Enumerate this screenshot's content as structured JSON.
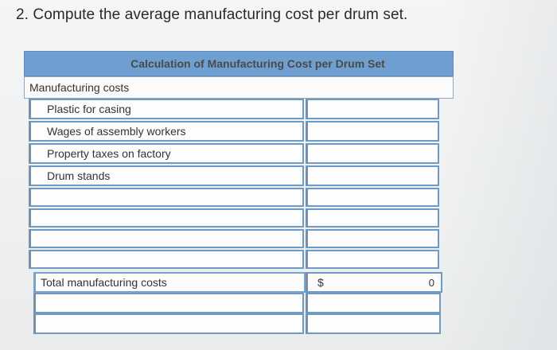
{
  "question": "2. Compute the average manufacturing cost per drum set.",
  "table": {
    "title": "Calculation of Manufacturing Cost per Drum Set",
    "section_label": "Manufacturing costs",
    "items": [
      "Plastic for casing",
      "Wages of assembly workers",
      "Property taxes on factory",
      "Drum stands"
    ],
    "total_label": "Total manufacturing costs",
    "total_currency": "$",
    "total_value": "0"
  }
}
